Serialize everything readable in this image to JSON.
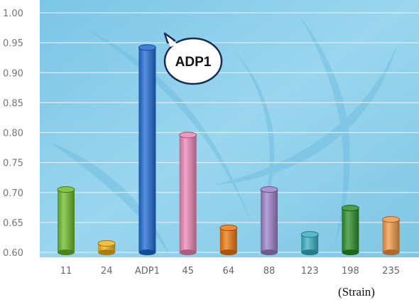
{
  "chart_data": {
    "type": "bar",
    "categories": [
      "11",
      "24",
      "ADP1",
      "45",
      "64",
      "88",
      "123",
      "198",
      "235"
    ],
    "values": [
      0.705,
      0.615,
      0.942,
      0.796,
      0.641,
      0.705,
      0.63,
      0.674,
      0.655
    ],
    "yticks": [
      "0.60",
      "0.65",
      "0.70",
      "0.75",
      "0.80",
      "0.85",
      "0.90",
      "0.95",
      "1.00"
    ],
    "ylim": [
      0.6,
      1.0
    ],
    "xlabel": "(Strain)",
    "ylabel": "",
    "grid": true,
    "annotation": {
      "text": "ADP1",
      "category": "ADP1"
    },
    "colors": {
      "background": "#8ccde8",
      "grid": "#d6eef8",
      "bars": [
        "#6dbb2a",
        "#f2b21d",
        "#1f6bd6",
        "#ef86b6",
        "#f0780f",
        "#9c82c9",
        "#3bb0c4",
        "#2c8f2a",
        "#f49846"
      ]
    }
  }
}
